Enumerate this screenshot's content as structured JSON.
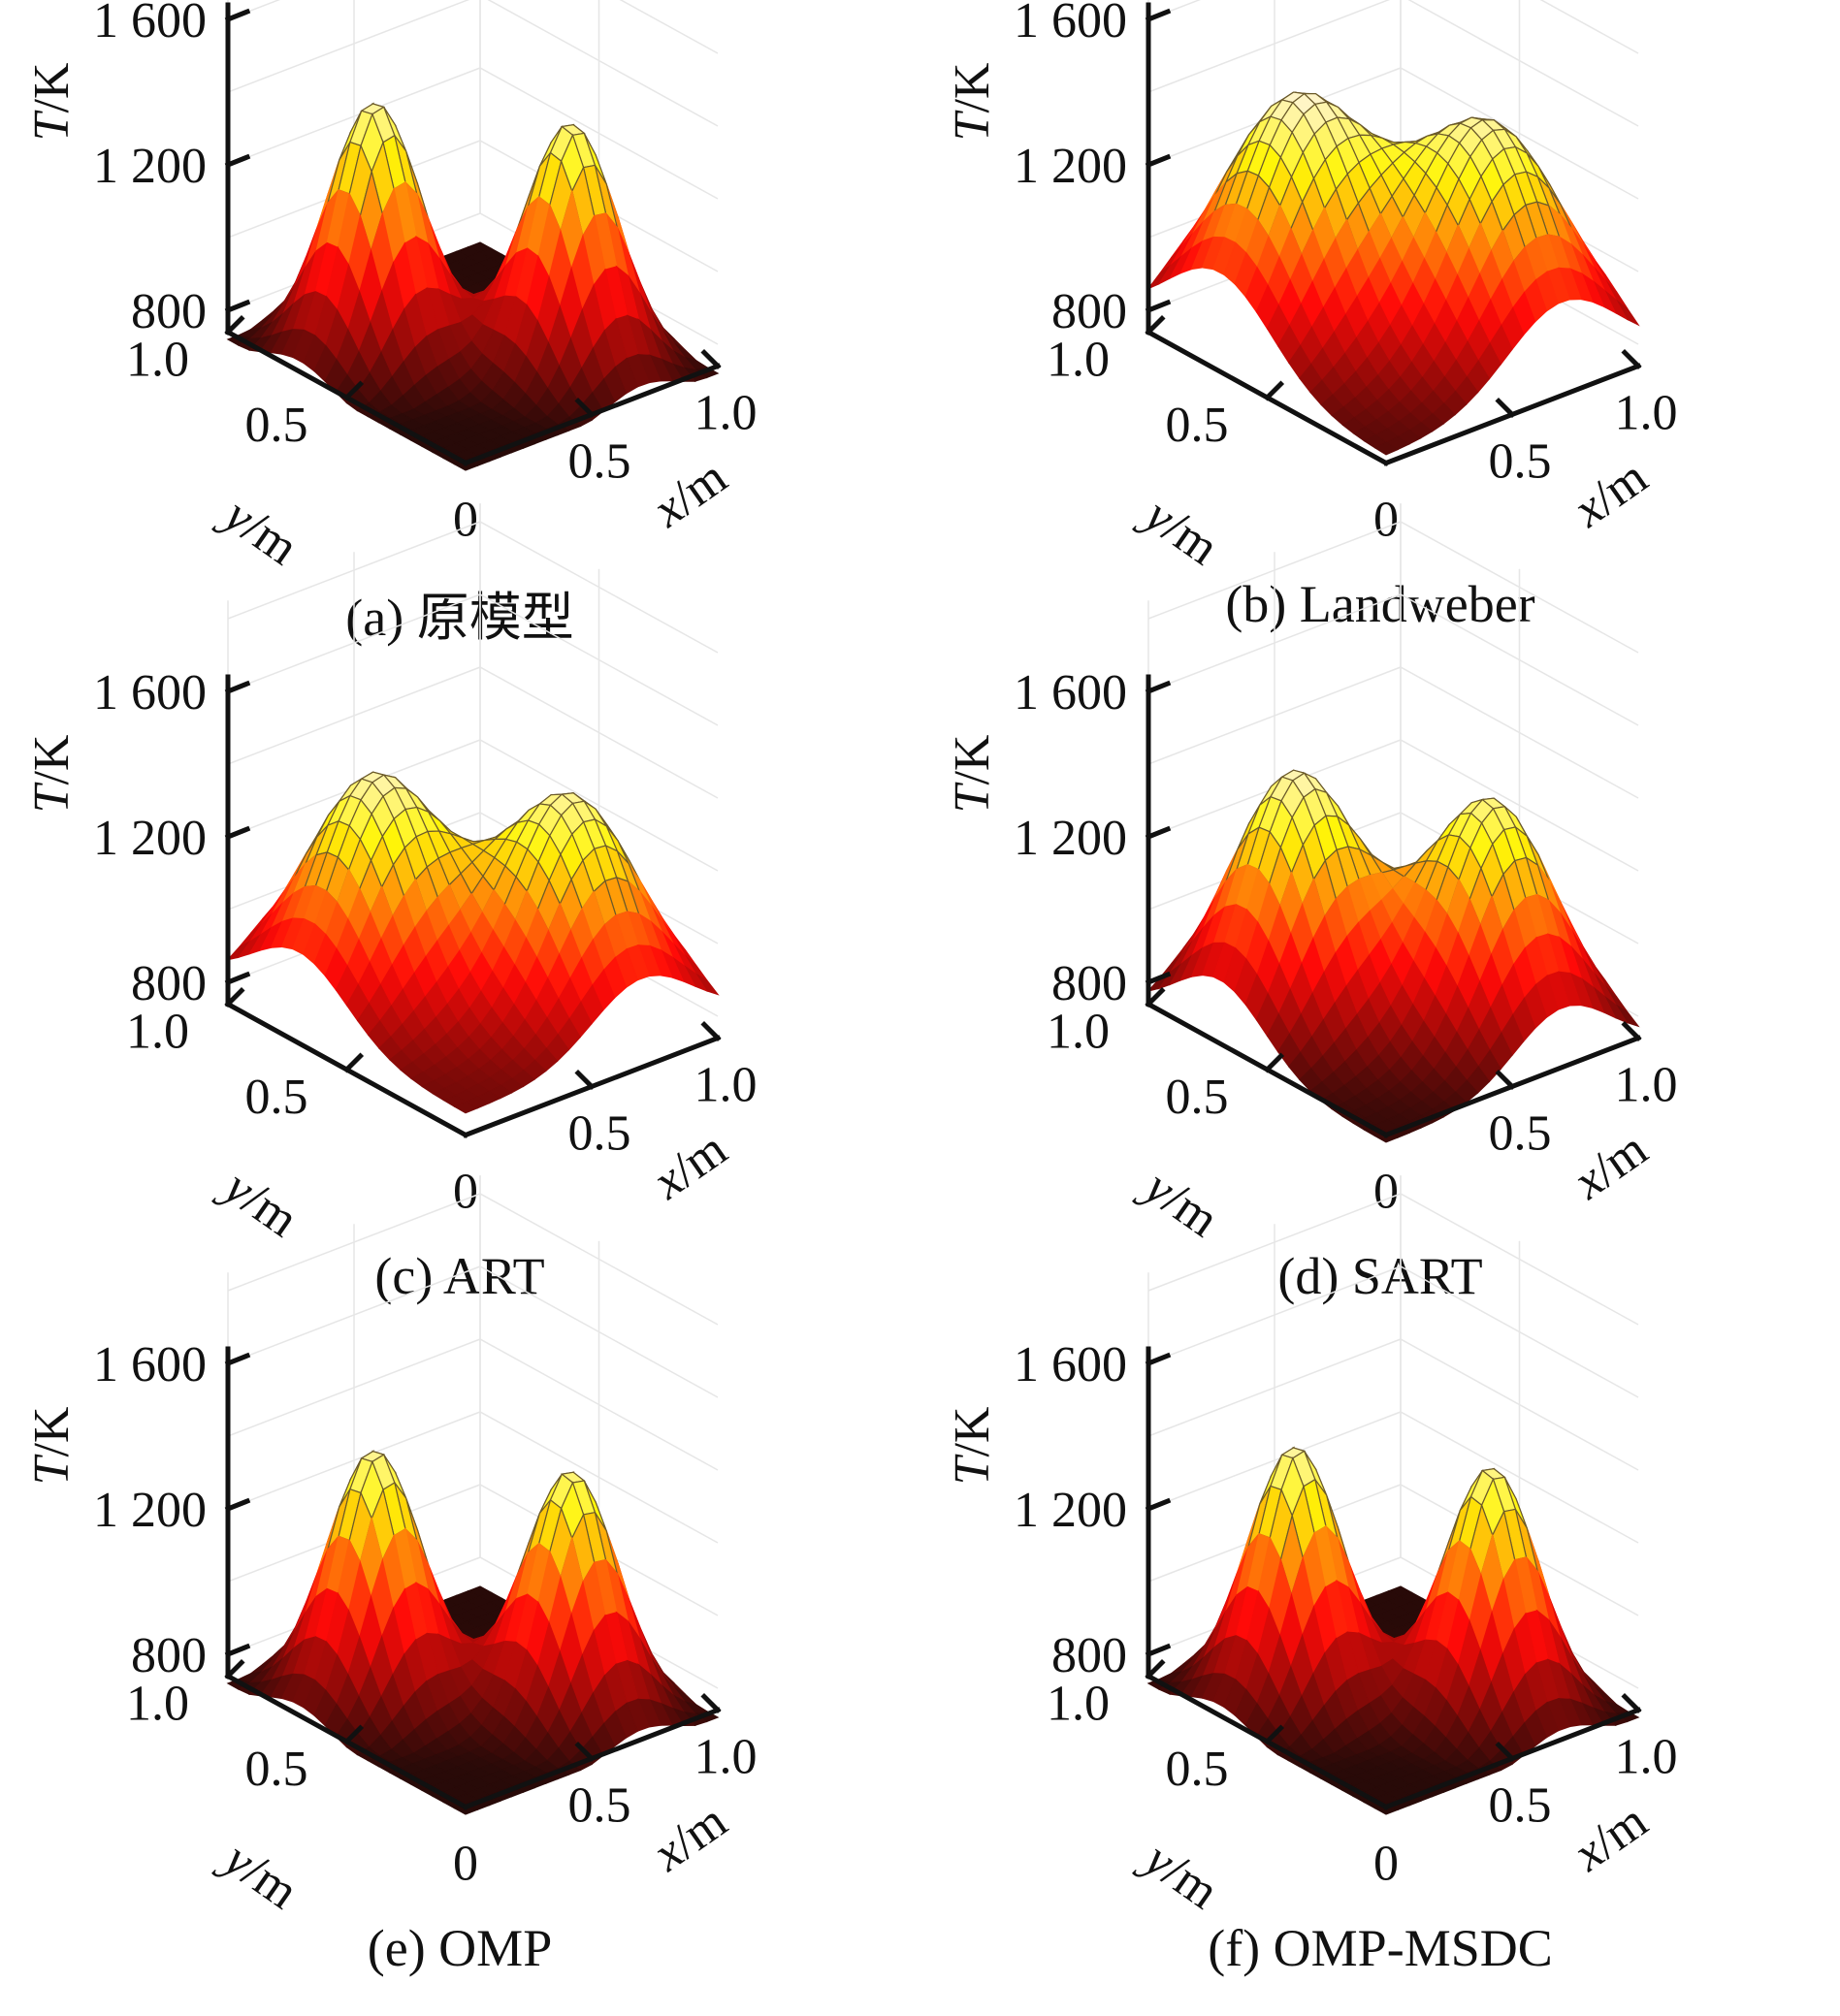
{
  "figure": {
    "panels": [
      {
        "id": "a",
        "caption": "(a) 原模型"
      },
      {
        "id": "b",
        "caption": "(b) Landweber"
      },
      {
        "id": "c",
        "caption": "(c) ART"
      },
      {
        "id": "d",
        "caption": "(d) SART"
      },
      {
        "id": "e",
        "caption": "(e) OMP"
      },
      {
        "id": "f",
        "caption": "(f) OMP-MSDC"
      }
    ]
  },
  "chart_data": [
    {
      "panel": "a",
      "type": "surface",
      "title": "(a) 原模型",
      "xlabel": "x/m",
      "ylabel": "y/m",
      "zlabel": "T/K",
      "xlim": [
        0,
        1.0
      ],
      "ylim": [
        0,
        1.0
      ],
      "zlim": [
        800,
        1600
      ],
      "xticks": [
        "0",
        "0.5",
        "1.0"
      ],
      "yticks": [
        "0",
        "0.5",
        "1.0"
      ],
      "zticks": [
        "800",
        "1 200",
        "1 600"
      ],
      "grid": true,
      "colormap": "hot",
      "baseline_T": 700,
      "peaks": [
        {
          "x": 0.3,
          "y": 0.7,
          "T_max": 1400,
          "width": 0.14
        },
        {
          "x": 0.7,
          "y": 0.3,
          "T_max": 1380,
          "width": 0.14
        }
      ]
    },
    {
      "panel": "b",
      "type": "surface",
      "title": "(b) Landweber",
      "xlabel": "x/m",
      "ylabel": "y/m",
      "zlabel": "T/K",
      "xlim": [
        0,
        1.0
      ],
      "ylim": [
        0,
        1.0
      ],
      "zlim": [
        800,
        1600
      ],
      "xticks": [
        "0",
        "0.5",
        "1.0"
      ],
      "yticks": [
        "0",
        "0.5",
        "1.0"
      ],
      "zticks": [
        "800",
        "1 200",
        "1 600"
      ],
      "grid": true,
      "colormap": "hot",
      "baseline_T": 760,
      "peaks": [
        {
          "x": 0.3,
          "y": 0.7,
          "T_max": 1400,
          "width": 0.22
        },
        {
          "x": 0.7,
          "y": 0.3,
          "T_max": 1360,
          "width": 0.22
        }
      ]
    },
    {
      "panel": "c",
      "type": "surface",
      "title": "(c) ART",
      "xlabel": "x/m",
      "ylabel": "y/m",
      "zlabel": "T/K",
      "xlim": [
        0,
        1.0
      ],
      "ylim": [
        0,
        1.0
      ],
      "zlim": [
        800,
        1600
      ],
      "xticks": [
        "0",
        "0.5",
        "1.0"
      ],
      "yticks": [
        "0",
        "0.5",
        "1.0"
      ],
      "zticks": [
        "800",
        "1 200",
        "1 600"
      ],
      "grid": true,
      "colormap": "hot",
      "baseline_T": 800,
      "peaks": [
        {
          "x": 0.3,
          "y": 0.7,
          "T_max": 1390,
          "width": 0.2
        },
        {
          "x": 0.7,
          "y": 0.3,
          "T_max": 1370,
          "width": 0.2
        }
      ]
    },
    {
      "panel": "d",
      "type": "surface",
      "title": "(d) SART",
      "xlabel": "x/m",
      "ylabel": "y/m",
      "zlabel": "T/K",
      "xlim": [
        0,
        1.0
      ],
      "ylim": [
        0,
        1.0
      ],
      "zlim": [
        800,
        1600
      ],
      "xticks": [
        "0",
        "0.5",
        "1.0"
      ],
      "yticks": [
        "0",
        "0.5",
        "1.0"
      ],
      "zticks": [
        "800",
        "1 200",
        "1 600"
      ],
      "grid": true,
      "colormap": "hot",
      "baseline_T": 720,
      "peaks": [
        {
          "x": 0.3,
          "y": 0.7,
          "T_max": 1400,
          "width": 0.19
        },
        {
          "x": 0.7,
          "y": 0.3,
          "T_max": 1360,
          "width": 0.19
        }
      ]
    },
    {
      "panel": "e",
      "type": "surface",
      "title": "(e) OMP",
      "xlabel": "x/m",
      "ylabel": "y/m",
      "zlabel": "T/K",
      "xlim": [
        0,
        1.0
      ],
      "ylim": [
        0,
        1.0
      ],
      "zlim": [
        800,
        1600
      ],
      "xticks": [
        "0",
        "0.5",
        "1.0"
      ],
      "yticks": [
        "0",
        "0.5",
        "1.0"
      ],
      "zticks": [
        "800",
        "1 200",
        "1 600"
      ],
      "grid": true,
      "colormap": "hot",
      "baseline_T": 700,
      "peaks": [
        {
          "x": 0.3,
          "y": 0.7,
          "T_max": 1390,
          "width": 0.14
        },
        {
          "x": 0.7,
          "y": 0.3,
          "T_max": 1370,
          "width": 0.14
        }
      ]
    },
    {
      "panel": "f",
      "type": "surface",
      "title": "(f) OMP-MSDC",
      "xlabel": "x/m",
      "ylabel": "y/m",
      "zlabel": "T/K",
      "xlim": [
        0,
        1.0
      ],
      "ylim": [
        0,
        1.0
      ],
      "zlim": [
        800,
        1600
      ],
      "xticks": [
        "0",
        "0.5",
        "1.0"
      ],
      "yticks": [
        "0",
        "0.5",
        "1.0"
      ],
      "zticks": [
        "800",
        "1 200",
        "1 600"
      ],
      "grid": true,
      "colormap": "hot",
      "baseline_T": 700,
      "peaks": [
        {
          "x": 0.3,
          "y": 0.7,
          "T_max": 1400,
          "width": 0.14
        },
        {
          "x": 0.7,
          "y": 0.3,
          "T_max": 1380,
          "width": 0.14
        }
      ]
    }
  ]
}
